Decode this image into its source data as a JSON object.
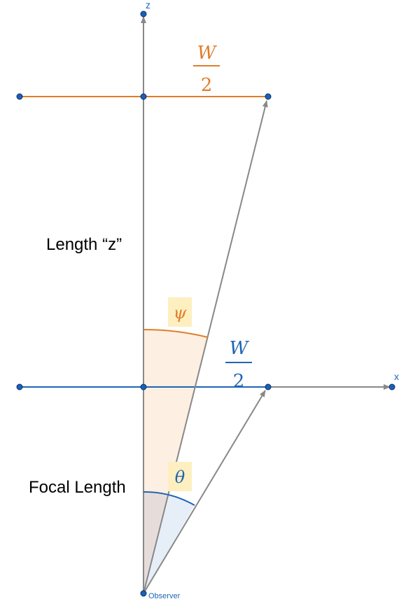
{
  "colors": {
    "axis": "#888888",
    "orange": "#e07d2a",
    "blue": "#1f65b5",
    "point": "#1a5fbd",
    "orange_fill": "#fdefe1",
    "blue_fill": "#e6eef8",
    "overlap_fill": "#e6ddda",
    "label_bg": "#fdefc0"
  },
  "labels": {
    "z_axis": "z",
    "x_axis": "x",
    "length_z": "Length “z”",
    "focal_length": "Focal Length",
    "observer": "Observer",
    "psi": "ψ",
    "theta": "θ",
    "frac_top_num": "W",
    "frac_top_den": "2",
    "frac_mid_num": "W",
    "frac_mid_den": "2"
  }
}
